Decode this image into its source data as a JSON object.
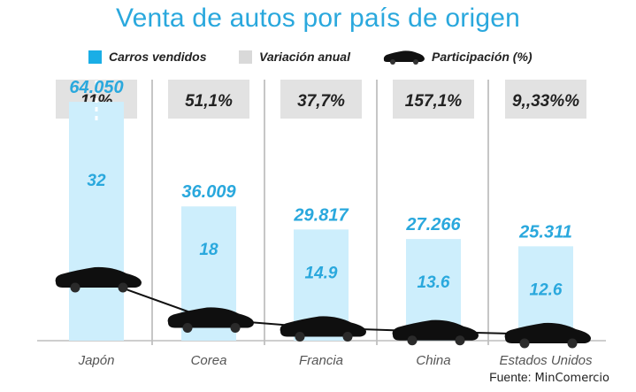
{
  "chart_data": {
    "type": "bar",
    "title": "Venta de autos por país de origen",
    "categories": [
      "Japón",
      "Corea",
      "Francia",
      "China",
      "Estados Unidos"
    ],
    "series": [
      {
        "name": "Carros vendidos",
        "values": [
          64050,
          36009,
          29817,
          27266,
          25311
        ],
        "labels": [
          "64.050",
          "36.009",
          "29.817",
          "27.266",
          "25.311"
        ]
      },
      {
        "name": "Variación anual",
        "labels": [
          "11%",
          "51,1%",
          "37,7%",
          "157,1%",
          "9,,33%%"
        ]
      },
      {
        "name": "Participación (%)",
        "values": [
          32,
          18,
          14.9,
          13.6,
          12.6
        ],
        "labels": [
          "32",
          "18",
          "14.9",
          "13.6",
          "12.6"
        ]
      }
    ],
    "ylim": [
      0,
      70000
    ],
    "legend_position": "top",
    "colors": {
      "bar": "#cdeefc",
      "box": "#e2e2e2",
      "car": "#0f0f0f",
      "value_text": "#2aa8dd",
      "title": "#2aa8dd"
    }
  },
  "source": {
    "label": "Fuente:",
    "value": "MinComercio"
  }
}
